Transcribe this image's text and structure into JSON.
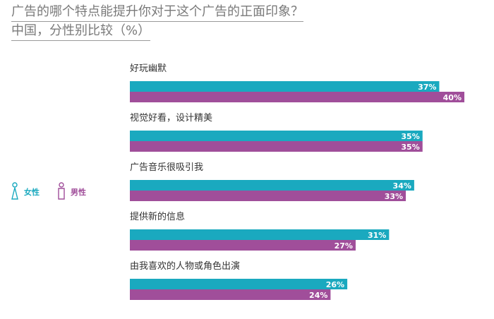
{
  "title": {
    "line1": "广告的哪个特点能提升你对于这个广告的正面印象？",
    "line2": "中国，分性别比较（%）"
  },
  "legend": {
    "female_label": "女性",
    "male_label": "男性"
  },
  "colors": {
    "female": "#1aa9bf",
    "male": "#a04e9a",
    "title": "#7a7a7a"
  },
  "chart_data": {
    "type": "bar",
    "orientation": "horizontal",
    "categories": [
      "好玩幽默",
      "视觉好看，设计精美",
      "广告音乐很吸引我",
      "提供新的信息",
      "由我喜欢的人物或角色出演"
    ],
    "series": [
      {
        "name": "女性",
        "values": [
          37,
          35,
          34,
          31,
          26
        ]
      },
      {
        "name": "男性",
        "values": [
          40,
          35,
          33,
          27,
          24
        ]
      }
    ],
    "value_suffix": "%",
    "xlim": [
      0,
      40
    ],
    "grid": false,
    "legend_position": "left"
  }
}
